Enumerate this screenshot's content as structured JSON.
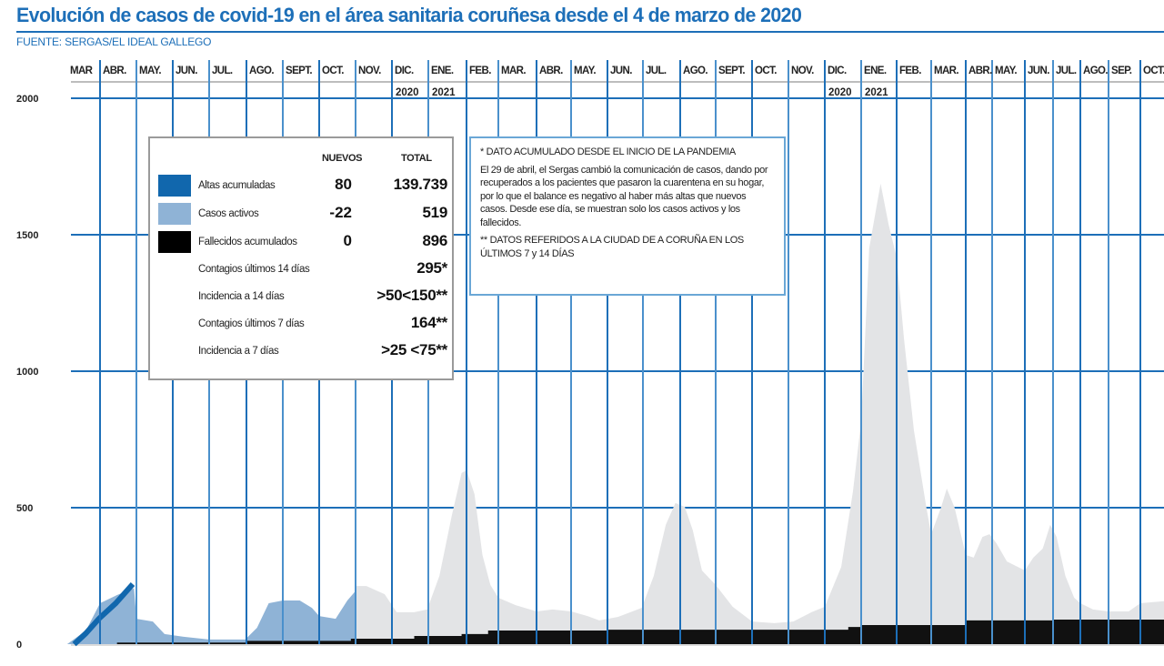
{
  "header": {
    "title": "Evolución de casos de covid-19 en el área sanitaria coruñesa desde el 4 de marzo de 2020",
    "source": "FUENTE: SERGAS/EL IDEAL GALLEGO"
  },
  "colors": {
    "accent": "#1d6fb8",
    "altas": "#1167ad",
    "activos": "#8fb3d6",
    "activos_later": "#e3e4e6",
    "fallecidos": "#111111",
    "grid": "#1d6fb8"
  },
  "legend": {
    "col_nuevos": "NUEVOS",
    "col_total": "TOTAL",
    "rows": [
      {
        "label": "Altas acumuladas",
        "nuevos": "80",
        "total": "139.739",
        "swatch": "#1167ad"
      },
      {
        "label": "Casos activos",
        "nuevos": "-22",
        "total": "519",
        "swatch": "#8fb3d6"
      },
      {
        "label": "Fallecidos acumulados",
        "nuevos": "0",
        "total": "896",
        "swatch": "#000000"
      },
      {
        "label": "Contagios últimos 14 días",
        "nuevos": "",
        "total": "295*"
      },
      {
        "label": "Incidencia a 14 días",
        "nuevos": "",
        "total": ">50<150**"
      },
      {
        "label": "Contagios últimos 7 días",
        "nuevos": "",
        "total": "164**"
      },
      {
        "label": "Incidencia a 7 días",
        "nuevos": "",
        "total": ">25 <75**"
      }
    ]
  },
  "notes": {
    "note1": "* DATO ACUMULADO DESDE EL INICIO DE LA PANDEMIA",
    "note2": "El 29 de abril, el Sergas cambió la comunicación de casos, dando por recuperados a los pacientes que pasaron la cuarentena en su hogar, por lo que el balance es negativo al haber más altas que nuevos casos. Desde ese día, se muestran solo los casos activos y los fallecidos.",
    "note3": "** DATOS REFERIDOS A LA CIUDAD DE A CORUÑA EN LOS ÚLTIMOS 7 y 14 DÍAS"
  },
  "chart_data": {
    "type": "area",
    "title": "Evolución de casos de covid-19 en el área sanitaria coruñesa desde el 4 de marzo de 2020",
    "xlabel": "",
    "ylabel": "",
    "ylim": [
      0,
      2000
    ],
    "yticks": [
      "2000",
      "1500",
      "1000",
      "500",
      "0"
    ],
    "ytick_values": [
      2000,
      1500,
      1000,
      500,
      0
    ],
    "grid": true,
    "legend_position": "top-left",
    "x_months": [
      "MAR",
      "ABR.",
      "MAY.",
      "JUN.",
      "JUL.",
      "AGO.",
      "SEPT.",
      "OCT.",
      "NOV.",
      "DIC.",
      "ENE.",
      "FEB.",
      "MAR.",
      "ABR.",
      "MAY.",
      "JUN.",
      "JUL.",
      "AGO.",
      "SEPT.",
      "OCT.",
      "NOV.",
      "DIC.",
      "ENE.",
      "FEB.",
      "MAR.",
      "ABR.",
      "MAY.",
      "JUN.",
      "JUL.",
      "AGO.",
      "SEP.",
      "OCT."
    ],
    "year_labels": [
      {
        "month_index": 9,
        "text": "2020"
      },
      {
        "month_index": 10,
        "text": "2021"
      },
      {
        "month_index": 21,
        "text": "2020"
      },
      {
        "month_index": 22,
        "text": "2021"
      }
    ],
    "series": [
      {
        "name": "Casos activos",
        "color": "#8fb3d6",
        "points": [
          [
            "2020-03-04",
            0
          ],
          [
            "2020-03-20",
            50
          ],
          [
            "2020-04-01",
            150
          ],
          [
            "2020-04-15",
            180
          ],
          [
            "2020-04-29",
            205
          ],
          [
            "2020-05-01",
            93
          ],
          [
            "2020-05-15",
            83
          ],
          [
            "2020-05-25",
            37
          ],
          [
            "2020-06-10",
            27
          ],
          [
            "2020-07-01",
            17
          ],
          [
            "2020-07-31",
            17
          ],
          [
            "2020-08-10",
            60
          ],
          [
            "2020-08-20",
            150
          ],
          [
            "2020-09-01",
            160
          ],
          [
            "2020-09-15",
            160
          ],
          [
            "2020-09-25",
            133
          ],
          [
            "2020-10-01",
            103
          ],
          [
            "2020-10-15",
            93
          ],
          [
            "2020-10-25",
            160
          ],
          [
            "2020-11-01",
            195
          ]
        ]
      },
      {
        "color": "#e3e4e6",
        "points": [
          [
            "2020-11-01",
            213
          ],
          [
            "2020-11-10",
            213
          ],
          [
            "2020-11-25",
            183
          ],
          [
            "2020-12-05",
            117
          ],
          [
            "2020-12-20",
            117
          ],
          [
            "2020-12-31",
            127
          ],
          [
            "2021-01-10",
            250
          ],
          [
            "2021-01-20",
            470
          ],
          [
            "2021-01-28",
            627
          ],
          [
            "2021-02-01",
            637
          ],
          [
            "2021-02-08",
            550
          ],
          [
            "2021-02-15",
            327
          ],
          [
            "2021-02-22",
            217
          ],
          [
            "2021-03-01",
            170
          ],
          [
            "2021-03-15",
            143
          ],
          [
            "2021-04-01",
            120
          ],
          [
            "2021-04-15",
            127
          ],
          [
            "2021-05-01",
            120
          ],
          [
            "2021-05-15",
            103
          ],
          [
            "2021-05-25",
            87
          ],
          [
            "2021-06-10",
            100
          ],
          [
            "2021-06-30",
            133
          ],
          [
            "2021-07-10",
            250
          ],
          [
            "2021-07-20",
            437
          ],
          [
            "2021-07-28",
            517
          ],
          [
            "2021-08-05",
            503
          ],
          [
            "2021-08-12",
            417
          ],
          [
            "2021-08-20",
            270
          ],
          [
            "2021-09-01",
            217
          ],
          [
            "2021-09-15",
            137
          ],
          [
            "2021-10-01",
            83
          ],
          [
            "2021-10-20",
            77
          ],
          [
            "2021-11-05",
            83
          ],
          [
            "2021-11-20",
            117
          ],
          [
            "2021-12-01",
            137
          ],
          [
            "2021-12-15",
            283
          ],
          [
            "2021-12-25",
            560
          ],
          [
            "2022-01-01",
            817
          ],
          [
            "2022-01-08",
            1450
          ],
          [
            "2022-01-15",
            1617
          ],
          [
            "2022-01-18",
            1687
          ],
          [
            "2022-01-25",
            1537
          ],
          [
            "2022-02-01",
            1417
          ],
          [
            "2022-02-07",
            1117
          ],
          [
            "2022-02-15",
            783
          ],
          [
            "2022-02-25",
            503
          ],
          [
            "2022-03-01",
            403
          ],
          [
            "2022-03-10",
            503
          ],
          [
            "2022-03-15",
            570
          ],
          [
            "2022-03-22",
            500
          ],
          [
            "2022-04-01",
            327
          ],
          [
            "2022-04-10",
            317
          ],
          [
            "2022-04-20",
            393
          ],
          [
            "2022-04-28",
            403
          ],
          [
            "2022-05-05",
            370
          ],
          [
            "2022-05-15",
            303
          ],
          [
            "2022-06-01",
            270
          ],
          [
            "2022-06-10",
            317
          ],
          [
            "2022-06-20",
            350
          ],
          [
            "2022-06-28",
            437
          ],
          [
            "2022-07-05",
            393
          ],
          [
            "2022-07-15",
            250
          ],
          [
            "2022-07-25",
            170
          ],
          [
            "2022-08-01",
            150
          ],
          [
            "2022-08-15",
            127
          ],
          [
            "2022-09-01",
            120
          ],
          [
            "2022-09-20",
            120
          ],
          [
            "2022-10-01",
            150
          ],
          [
            "2022-10-31",
            160
          ]
        ]
      },
      {
        "name": "Fallecidos acumulados",
        "color": "#111111",
        "points": [
          [
            "2020-04-15",
            6
          ],
          [
            "2020-08-01",
            12
          ],
          [
            "2020-10-28",
            20
          ],
          [
            "2020-12-20",
            30
          ],
          [
            "2021-01-28",
            37
          ],
          [
            "2021-02-20",
            50
          ],
          [
            "2021-06-01",
            53
          ],
          [
            "2021-12-21",
            63
          ],
          [
            "2022-01-01",
            70
          ],
          [
            "2022-04-01",
            87
          ],
          [
            "2022-07-01",
            90
          ],
          [
            "2022-10-31",
            90
          ]
        ]
      },
      {
        "name": "Altas acumuladas",
        "color": "#1167ad",
        "points": [
          [
            "2020-03-10",
            0
          ],
          [
            "2020-03-20",
            40
          ],
          [
            "2020-03-31",
            93
          ],
          [
            "2020-04-14",
            150
          ],
          [
            "2020-04-28",
            220
          ]
        ]
      }
    ]
  }
}
